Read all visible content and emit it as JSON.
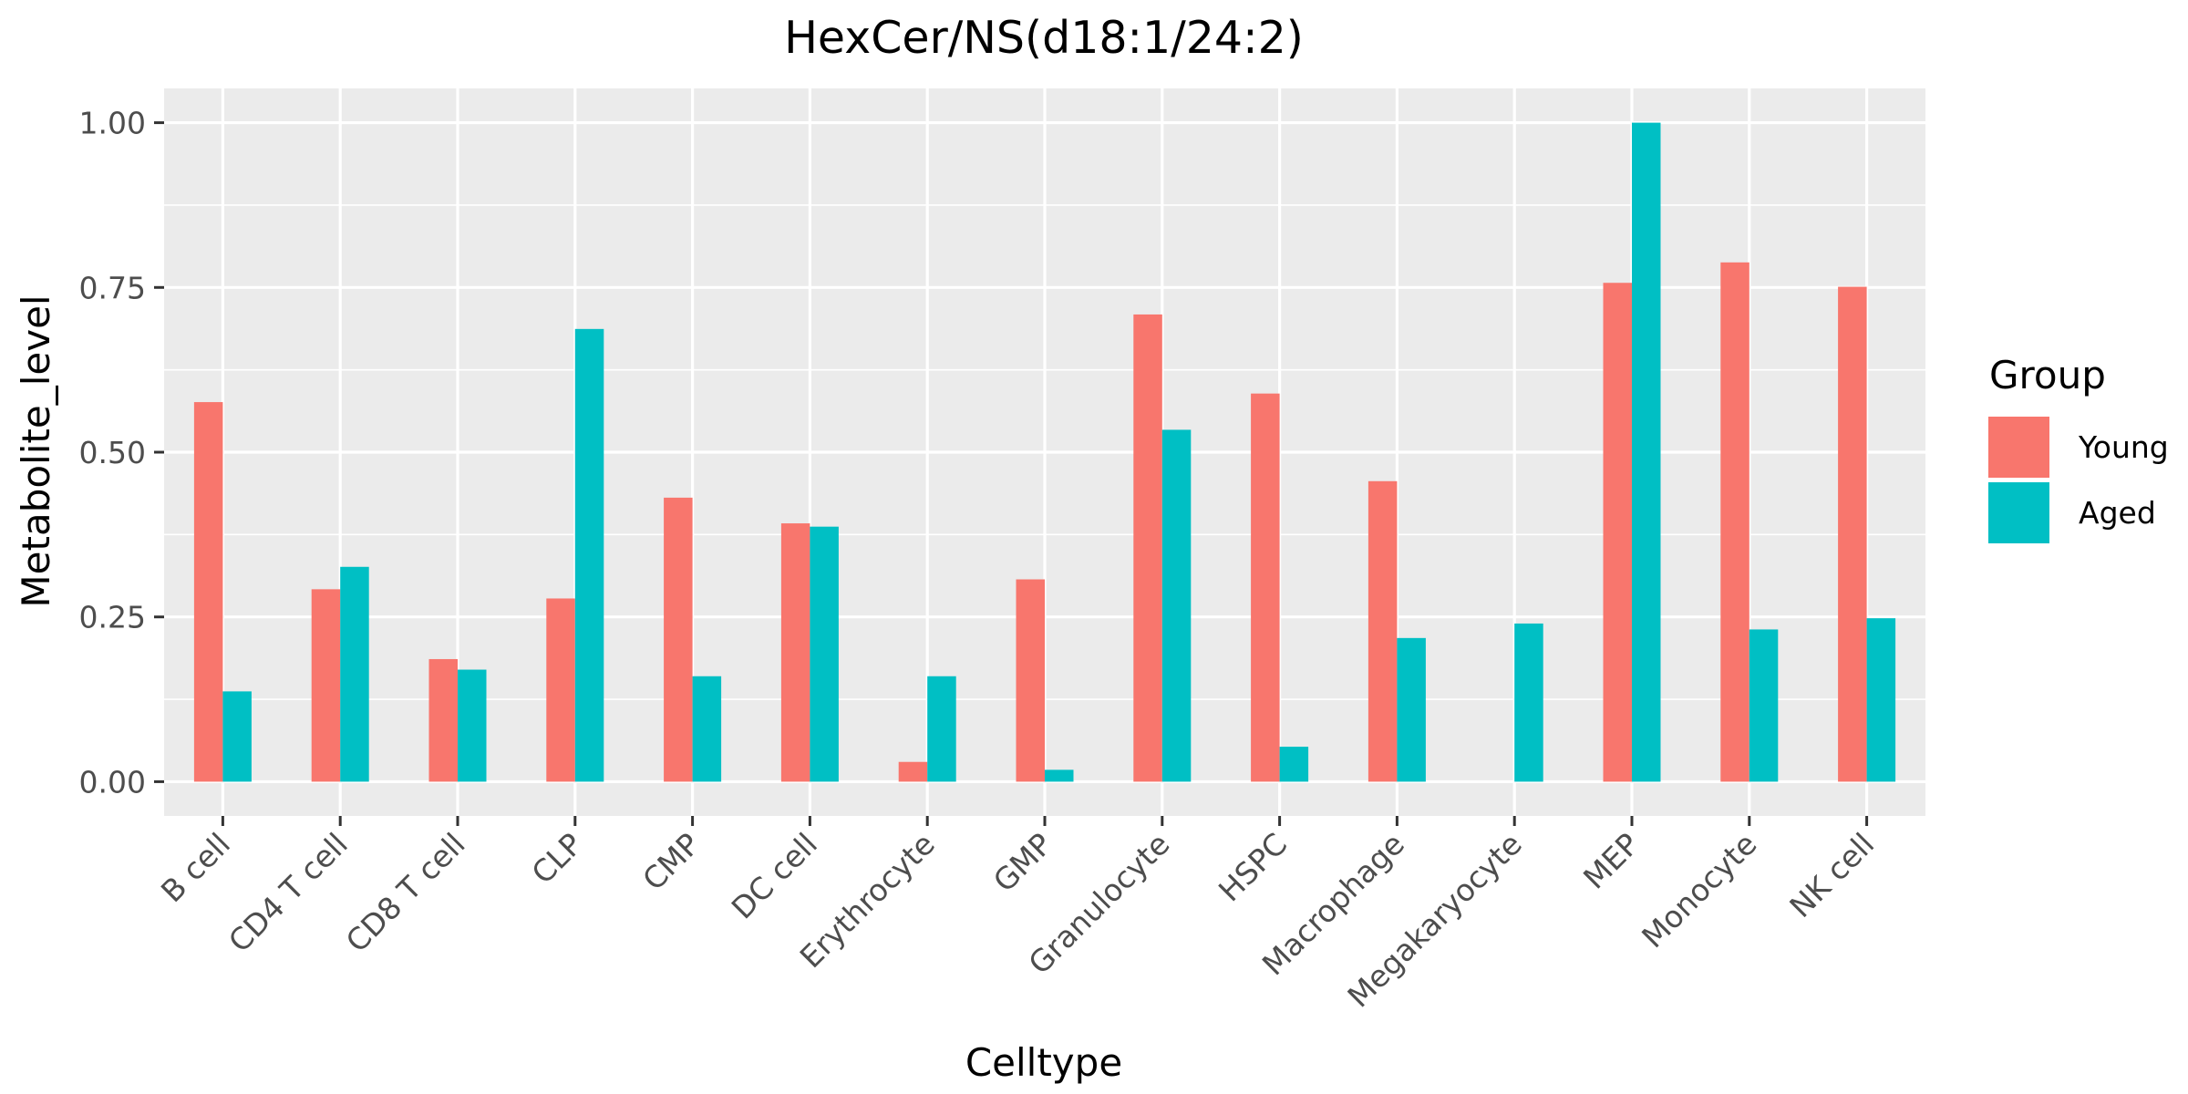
{
  "chart_data": {
    "type": "bar",
    "title": "HexCer/NS(d18:1/24:2)",
    "xlabel": "Celltype",
    "ylabel": "Metabolite_level",
    "categories": [
      "B cell",
      "CD4 T cell",
      "CD8 T cell",
      "CLP",
      "CMP",
      "DC cell",
      "Erythrocyte",
      "GMP",
      "Granulocyte",
      "HSPC",
      "Macrophage",
      "Megakaryocyte",
      "MEP",
      "Monocyte",
      "NK cell"
    ],
    "series": [
      {
        "name": "Young",
        "color": "#F8766D",
        "values": [
          0.576,
          0.292,
          0.186,
          0.278,
          0.431,
          0.392,
          0.03,
          0.307,
          0.709,
          0.589,
          0.456,
          0.0,
          0.757,
          0.788,
          0.751
        ]
      },
      {
        "name": "Aged",
        "color": "#00BFC4",
        "values": [
          0.137,
          0.326,
          0.17,
          0.687,
          0.16,
          0.387,
          0.16,
          0.018,
          0.534,
          0.053,
          0.218,
          0.24,
          1.0,
          0.231,
          0.248
        ]
      }
    ],
    "ylim": [
      -0.052,
      1.052
    ],
    "yticks": [
      0,
      0.25,
      0.5,
      0.75,
      1
    ],
    "ytick_labels": [
      "0.00",
      "0.25",
      "0.50",
      "0.75",
      "1.00"
    ],
    "grid": true,
    "legend": {
      "title": "Group",
      "position": "right"
    },
    "background": "#EBEBEB",
    "grid_color": "#FFFFFF"
  }
}
